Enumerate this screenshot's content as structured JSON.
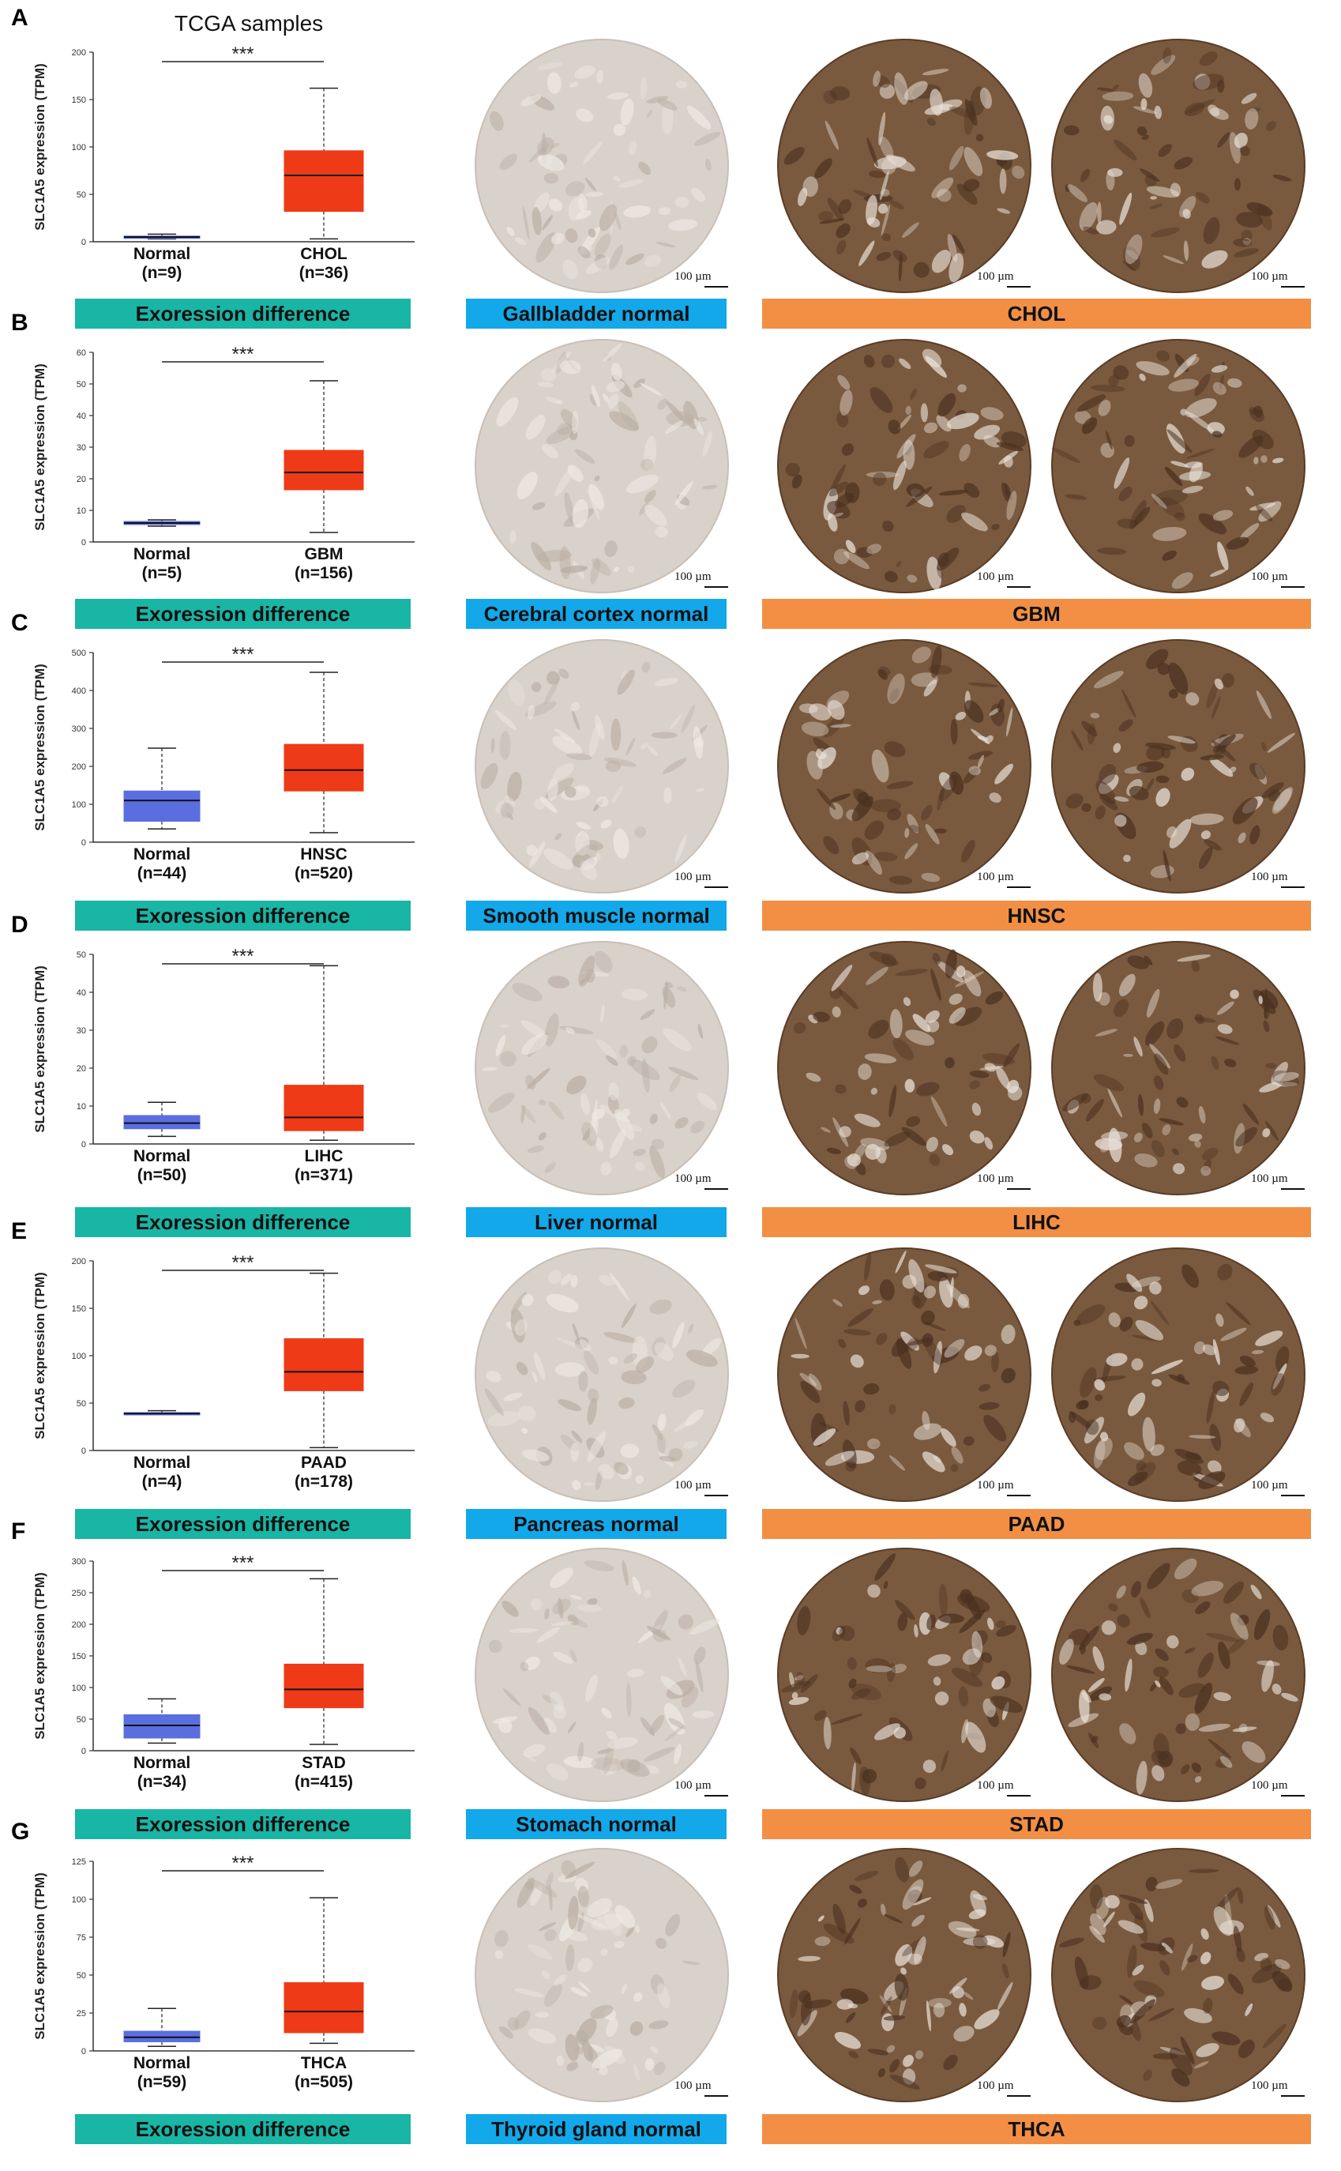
{
  "figure": {
    "header": "TCGA samples",
    "scale_text": "100 µm"
  },
  "colors": {
    "normal_box": "#5b6ee0",
    "tumor_box": "#ef3a17",
    "banner_teal": "#19b5a5",
    "banner_blue": "#12a8ea",
    "banner_orange": "#f28f45",
    "stain_dark": "#6f4e33",
    "stain_light": "#d9d2ca"
  },
  "chart_data": [
    {
      "panel": "A",
      "type": "box",
      "ylabel": "SLC1A5 expression (TPM)",
      "ylim": [
        0,
        200
      ],
      "yticks": [
        0,
        50,
        100,
        150,
        200
      ],
      "categories": [
        "Normal",
        "CHOL"
      ],
      "counts": [
        "(n=9)",
        "(n=36)"
      ],
      "boxes": [
        {
          "min": 3,
          "q1": 4,
          "median": 5,
          "q3": 6,
          "max": 8
        },
        {
          "min": 3,
          "q1": 32,
          "median": 70,
          "q3": 96,
          "max": 162
        }
      ],
      "significance": "***",
      "banners": [
        "Exoression difference",
        "Gallbladder normal",
        "CHOL"
      ]
    },
    {
      "panel": "B",
      "type": "box",
      "ylabel": "SLC1A5 expression (TPM)",
      "ylim": [
        0,
        60
      ],
      "yticks": [
        0,
        10,
        20,
        30,
        40,
        50,
        60
      ],
      "categories": [
        "Normal",
        "GBM"
      ],
      "counts": [
        "(n=5)",
        "(n=156)"
      ],
      "boxes": [
        {
          "min": 5,
          "q1": 5.5,
          "median": 6,
          "q3": 6.5,
          "max": 7
        },
        {
          "min": 3,
          "q1": 16.5,
          "median": 22,
          "q3": 29,
          "max": 51
        }
      ],
      "significance": "***",
      "banners": [
        "Exoression difference",
        "Cerebral cortex normal",
        "GBM"
      ]
    },
    {
      "panel": "C",
      "type": "box",
      "ylabel": "SLC1A5 expression (TPM)",
      "ylim": [
        0,
        500
      ],
      "yticks": [
        0,
        100,
        200,
        300,
        400,
        500
      ],
      "categories": [
        "Normal",
        "HNSC"
      ],
      "counts": [
        "(n=44)",
        "(n=520)"
      ],
      "boxes": [
        {
          "min": 35,
          "q1": 55,
          "median": 110,
          "q3": 135,
          "max": 248
        },
        {
          "min": 25,
          "q1": 135,
          "median": 190,
          "q3": 258,
          "max": 448
        }
      ],
      "significance": "***",
      "banners": [
        "Exoression difference",
        "Smooth muscle normal",
        "HNSC"
      ]
    },
    {
      "panel": "D",
      "type": "box",
      "ylabel": "SLC1A5 expression (TPM)",
      "ylim": [
        0,
        50
      ],
      "yticks": [
        0,
        10,
        20,
        30,
        40,
        50
      ],
      "categories": [
        "Normal",
        "LIHC"
      ],
      "counts": [
        "(n=50)",
        "(n=371)"
      ],
      "boxes": [
        {
          "min": 2,
          "q1": 4,
          "median": 5.5,
          "q3": 7.5,
          "max": 11
        },
        {
          "min": 1,
          "q1": 3.5,
          "median": 7,
          "q3": 15.5,
          "max": 47
        }
      ],
      "significance": "***",
      "banners": [
        "Exoression difference",
        "Liver normal",
        "LIHC"
      ]
    },
    {
      "panel": "E",
      "type": "box",
      "ylabel": "SLC1A5 expression (TPM)",
      "ylim": [
        0,
        200
      ],
      "yticks": [
        0,
        50,
        100,
        150,
        200
      ],
      "categories": [
        "Normal",
        "PAAD"
      ],
      "counts": [
        "(n=4)",
        "(n=178)"
      ],
      "boxes": [
        {
          "min": 38,
          "q1": 38,
          "median": 39,
          "q3": 40,
          "max": 42
        },
        {
          "min": 3,
          "q1": 63,
          "median": 83,
          "q3": 118,
          "max": 187
        }
      ],
      "significance": "***",
      "banners": [
        "Exoression difference",
        "Pancreas normal",
        "PAAD"
      ]
    },
    {
      "panel": "F",
      "type": "box",
      "ylabel": "SLC1A5 expression (TPM)",
      "ylim": [
        0,
        300
      ],
      "yticks": [
        0,
        50,
        100,
        150,
        200,
        250,
        300
      ],
      "categories": [
        "Normal",
        "STAD"
      ],
      "counts": [
        "(n=34)",
        "(n=415)"
      ],
      "boxes": [
        {
          "min": 12,
          "q1": 20,
          "median": 40,
          "q3": 57,
          "max": 82
        },
        {
          "min": 10,
          "q1": 68,
          "median": 97,
          "q3": 137,
          "max": 272
        }
      ],
      "significance": "***",
      "banners": [
        "Exoression difference",
        "Stomach normal",
        "STAD"
      ]
    },
    {
      "panel": "G",
      "type": "box",
      "ylabel": "SLC1A5 expression (TPM)",
      "ylim": [
        0,
        125
      ],
      "yticks": [
        0,
        25,
        50,
        75,
        100,
        125
      ],
      "categories": [
        "Normal",
        "THCA"
      ],
      "counts": [
        "(n=59)",
        "(n=505)"
      ],
      "boxes": [
        {
          "min": 3,
          "q1": 6,
          "median": 9,
          "q3": 13,
          "max": 28
        },
        {
          "min": 5,
          "q1": 12,
          "median": 26,
          "q3": 45,
          "max": 101
        }
      ],
      "significance": "***",
      "banners": [
        "Exoression difference",
        "Thyroid gland normal",
        "THCA"
      ]
    }
  ]
}
